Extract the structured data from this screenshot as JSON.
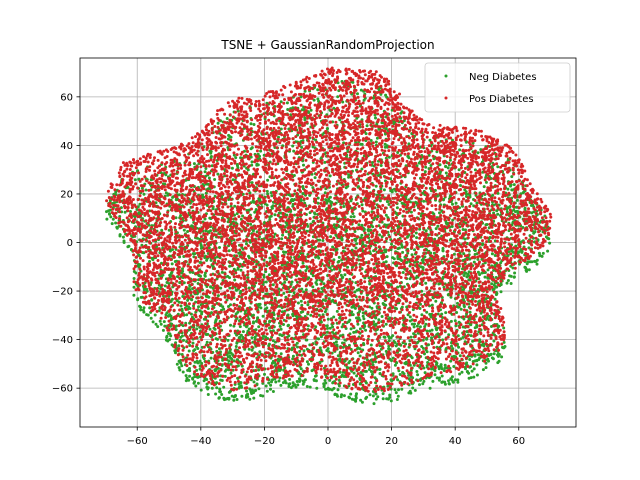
{
  "chart_data": {
    "type": "scatter",
    "title": "TSNE + GaussianRandomProjection",
    "xlabel": "",
    "ylabel": "",
    "xlim": [
      -78,
      78
    ],
    "ylim": [
      -76,
      76
    ],
    "xticks": [
      -60,
      -40,
      -20,
      0,
      20,
      40,
      60
    ],
    "yticks": [
      -60,
      -40,
      -20,
      0,
      20,
      40,
      60
    ],
    "xtick_labels": [
      "−60",
      "−40",
      "−20",
      "0",
      "20",
      "40",
      "60"
    ],
    "ytick_labels": [
      "−60",
      "−40",
      "−20",
      "0",
      "20",
      "40",
      "60"
    ],
    "grid": true,
    "legend_position": "top-right",
    "series": [
      {
        "name": "Neg Diabetes",
        "color": "#2ca02c",
        "cloud": {
          "cx": 0,
          "cy": -3,
          "rx": 72,
          "ry": 70,
          "density_bias": "lower"
        }
      },
      {
        "name": "Pos Diabetes",
        "color": "#d62728",
        "cloud": {
          "cx": 0,
          "cy": 2,
          "rx": 72,
          "ry": 70,
          "density_bias": "upper"
        }
      }
    ]
  }
}
